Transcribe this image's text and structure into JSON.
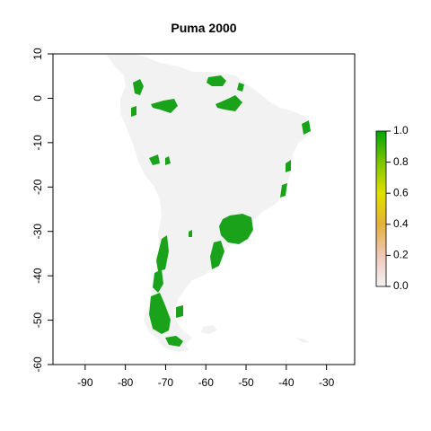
{
  "chart_data": {
    "type": "heatmap",
    "title": "Puma 2000",
    "x_ticks": [
      -90,
      -80,
      -70,
      -60,
      -50,
      -40,
      -30
    ],
    "y_ticks": [
      10,
      0,
      -10,
      -20,
      -30,
      -40,
      -50,
      -60
    ],
    "xlim": [
      -98,
      -23
    ],
    "ylim": [
      -60,
      10
    ],
    "legend": {
      "ticks": [
        "1.0",
        "0.8",
        "0.6",
        "0.4",
        "0.2",
        "0.0"
      ],
      "range": [
        0,
        1
      ],
      "colors": [
        "#f2f2f2",
        "#f0c8b8",
        "#e3b13a",
        "#e0e000",
        "#7cc400",
        "#00a600"
      ]
    },
    "colors": {
      "land": "#f2f2f2",
      "presence": "#1aa31a"
    }
  }
}
